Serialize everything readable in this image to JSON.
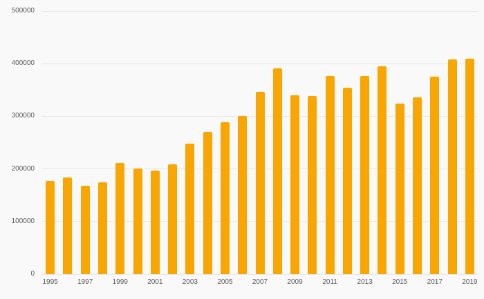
{
  "chart_data": {
    "type": "bar",
    "title": "",
    "xlabel": "",
    "ylabel": "",
    "categories": [
      "1995",
      "1996",
      "1997",
      "1998",
      "1999",
      "2000",
      "2001",
      "2002",
      "2003",
      "2004",
      "2005",
      "2006",
      "2007",
      "2008",
      "2009",
      "2010",
      "2011",
      "2012",
      "2013",
      "2014",
      "2015",
      "2016",
      "2017",
      "2018",
      "2019"
    ],
    "values": [
      177000,
      184000,
      168000,
      175000,
      211000,
      201000,
      197000,
      209000,
      248000,
      271000,
      289000,
      301000,
      347000,
      391000,
      340000,
      338000,
      377000,
      354000,
      377000,
      395000,
      324000,
      336000,
      375000,
      408000,
      409000
    ],
    "ylim": [
      0,
      500000
    ],
    "y_ticks": [
      0,
      100000,
      200000,
      300000,
      400000,
      500000
    ],
    "x_tick_labels": [
      "1995",
      "1997",
      "1999",
      "2001",
      "2003",
      "2005",
      "2007",
      "2009",
      "2011",
      "2013",
      "2015",
      "2017",
      "2019"
    ],
    "grid": true,
    "legend": false,
    "bar_color": "#F9A602",
    "background_color": "#f9f9f9",
    "grid_color": "#e8e8e8",
    "axis_text_color": "#595959"
  }
}
